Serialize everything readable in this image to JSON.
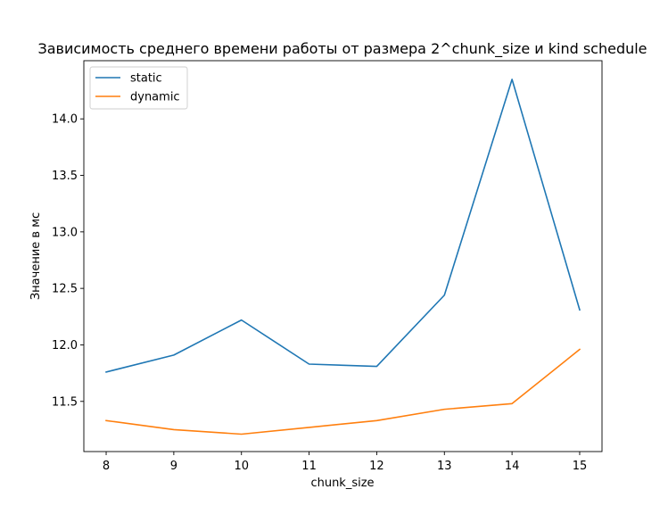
{
  "chart_data": {
    "type": "line",
    "title": "Зависимость среднего времени работы от размера 2^chunk_size и kind schedule",
    "xlabel": "chunk_size",
    "ylabel": "Значение в мс",
    "x": [
      8,
      9,
      10,
      11,
      12,
      13,
      14,
      15
    ],
    "xlim": [
      7.67,
      15.33
    ],
    "ylim": [
      11.056,
      14.515
    ],
    "yticks": [
      11.5,
      12.0,
      12.5,
      13.0,
      13.5,
      14.0
    ],
    "ytick_labels": [
      "11.5",
      "12.0",
      "12.5",
      "13.0",
      "13.5",
      "14.0"
    ],
    "xtick_labels": [
      "8",
      "9",
      "10",
      "11",
      "12",
      "13",
      "14",
      "15"
    ],
    "grid": false,
    "legend_position": "top-left",
    "series": [
      {
        "name": "static",
        "color": "#1f77b4",
        "values": [
          11.76,
          11.91,
          12.22,
          11.83,
          11.81,
          12.44,
          14.35,
          12.31
        ]
      },
      {
        "name": "dynamic",
        "color": "#ff7f0e",
        "values": [
          11.33,
          11.25,
          11.21,
          11.27,
          11.33,
          11.43,
          11.48,
          11.96
        ]
      }
    ]
  }
}
